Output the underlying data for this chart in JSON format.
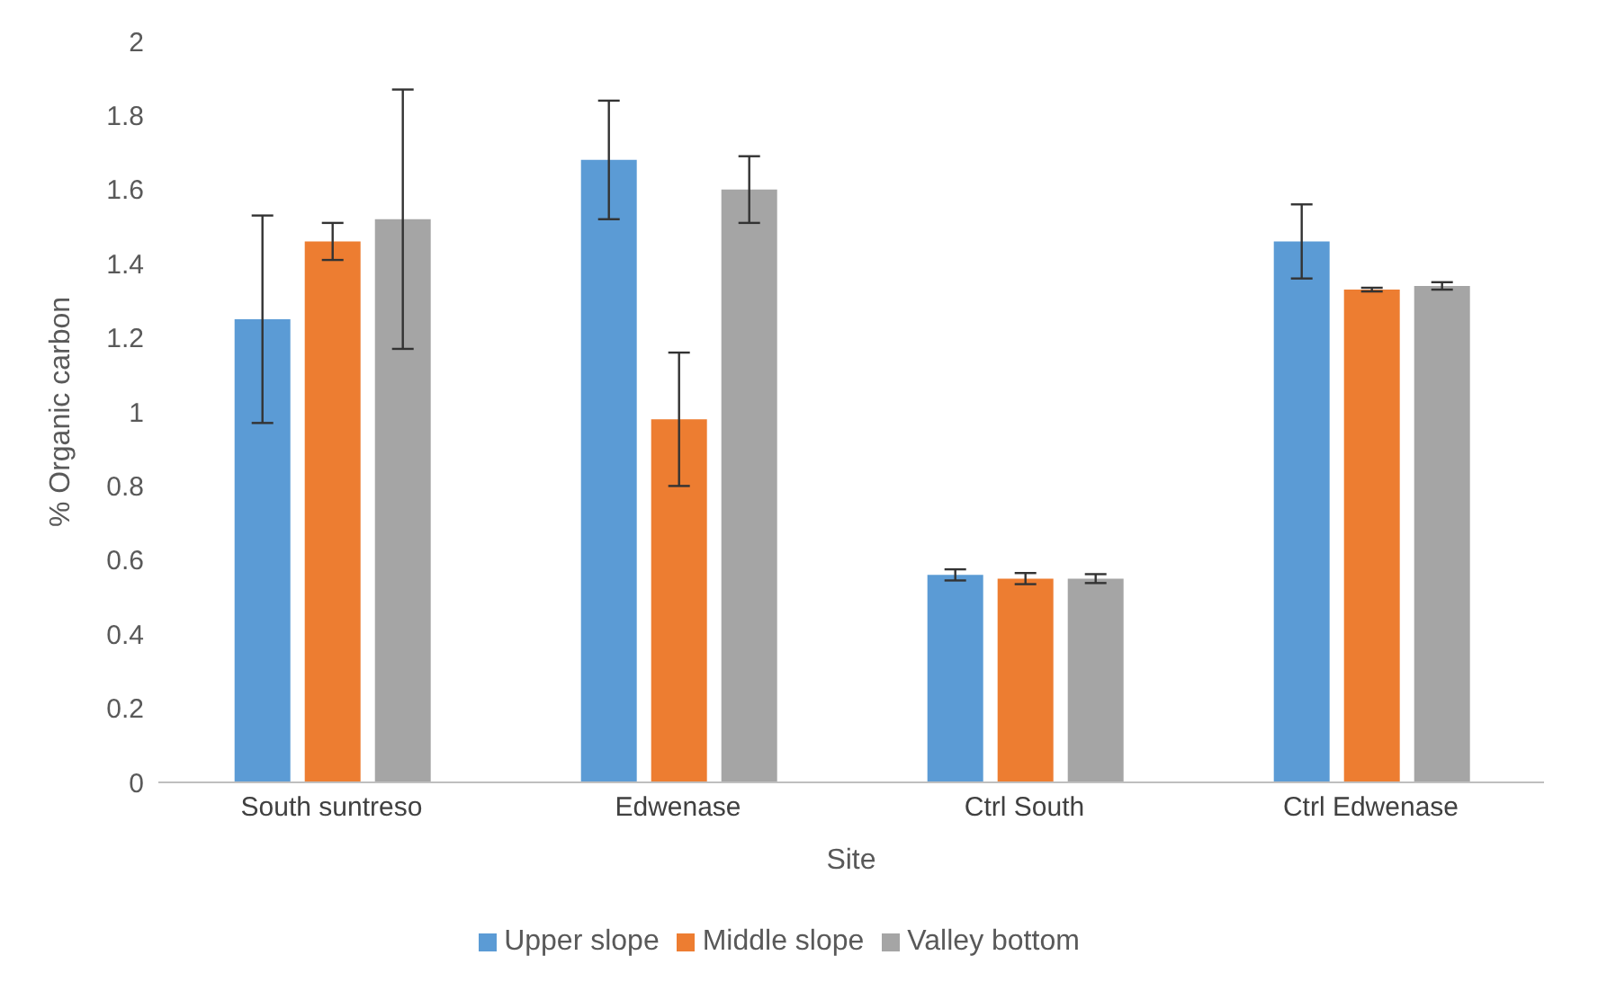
{
  "chart_data": {
    "type": "bar",
    "xlabel": "Site",
    "ylabel": "% Organic carbon",
    "categories": [
      "South suntreso",
      "Edwenase",
      "Ctrl South",
      "Ctrl Edwenase"
    ],
    "series": [
      {
        "name": "Upper slope",
        "color": "#5b9bd5",
        "values": [
          1.25,
          1.68,
          0.56,
          1.46
        ],
        "errors": [
          0.28,
          0.16,
          0.015,
          0.1
        ]
      },
      {
        "name": "Middle slope",
        "color": "#ed7d31",
        "values": [
          1.46,
          0.98,
          0.55,
          1.33
        ],
        "errors": [
          0.05,
          0.18,
          0.015,
          0.005
        ]
      },
      {
        "name": "Valley bottom",
        "color": "#a5a5a5",
        "values": [
          1.52,
          1.6,
          0.55,
          1.34
        ],
        "errors": [
          0.35,
          0.09,
          0.012,
          0.01
        ]
      }
    ],
    "ylim": [
      0,
      2
    ],
    "yticks": [
      0,
      0.2,
      0.4,
      0.6,
      0.8,
      1,
      1.2,
      1.4,
      1.6,
      1.8,
      2
    ],
    "grid": false,
    "legend": "bottom"
  }
}
